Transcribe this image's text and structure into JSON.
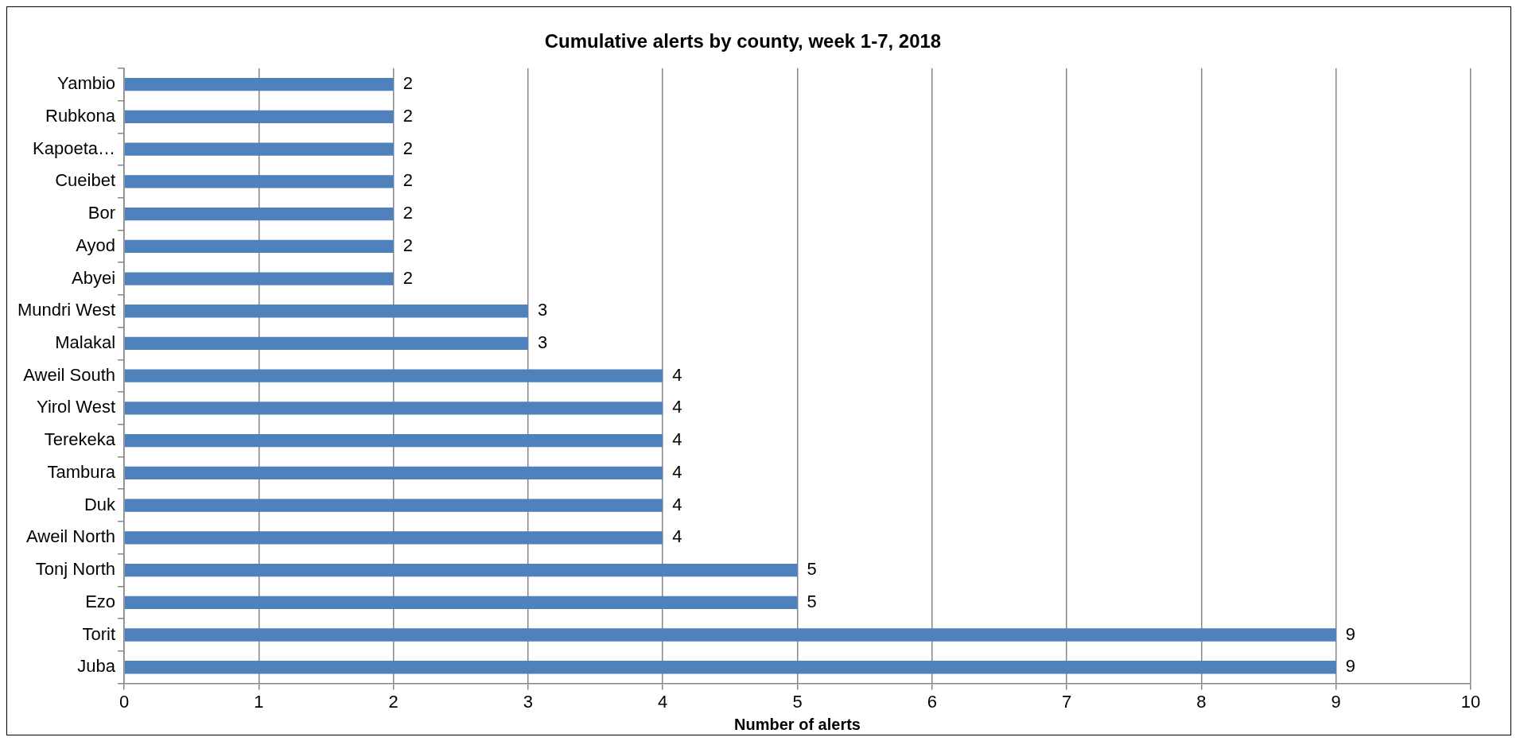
{
  "chart_data": {
    "type": "bar",
    "orientation": "horizontal",
    "title": "Cumulative alerts by county, week 1-7, 2018",
    "xlabel": "Number of alerts",
    "categories": [
      "Yambio",
      "Rubkona",
      "Kapoeta…",
      "Cueibet",
      "Bor",
      "Ayod",
      "Abyei",
      "Mundri West",
      "Malakal",
      "Aweil South",
      "Yirol West",
      "Terekeka",
      "Tambura",
      "Duk",
      "Aweil North",
      "Tonj North",
      "Ezo",
      "Torit",
      "Juba"
    ],
    "values": [
      2,
      2,
      2,
      2,
      2,
      2,
      2,
      3,
      3,
      4,
      4,
      4,
      4,
      4,
      4,
      5,
      5,
      9,
      9
    ],
    "color": "#4f81bd",
    "xlim": [
      0,
      10
    ],
    "xticks": [
      0,
      1,
      2,
      3,
      4,
      5,
      6,
      7,
      8,
      9,
      10
    ],
    "grid": "x",
    "data_labels": true,
    "legend": false
  }
}
